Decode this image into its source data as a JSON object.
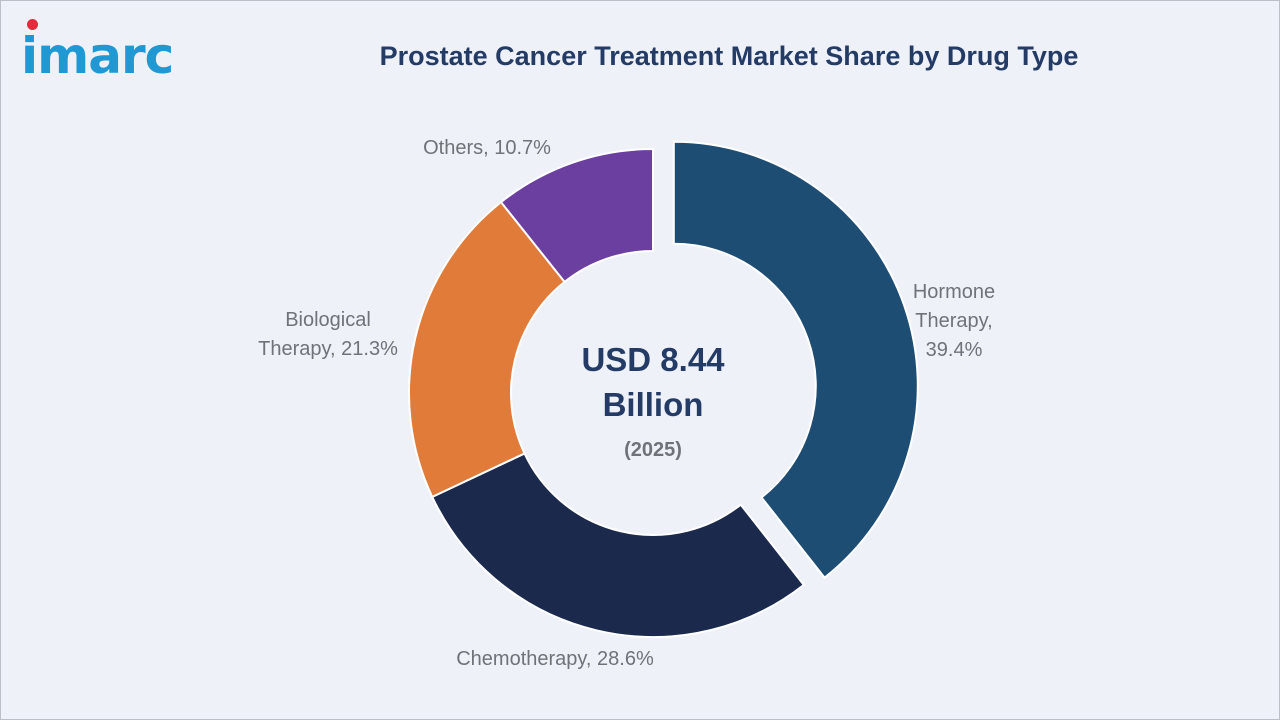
{
  "logo": {
    "text": "imarc"
  },
  "chart_data": {
    "type": "pie",
    "variant": "donut",
    "title": "Prostate Cancer Treatment Market Share by Drug Type",
    "center": {
      "value_line1": "USD 8.44",
      "value_line2": "Billion",
      "year": "(2025)"
    },
    "slices": [
      {
        "label": "Hormone Therapy",
        "value": 39.4,
        "color": "#1e4d74",
        "exploded": true,
        "label_lines": [
          "Hormone",
          "Therapy,",
          "39.4%"
        ]
      },
      {
        "label": "Chemotherapy",
        "value": 28.6,
        "color": "#1b2a4c",
        "exploded": false,
        "label_lines": [
          "Chemotherapy, 28.6%"
        ]
      },
      {
        "label": "Biological Therapy",
        "value": 21.3,
        "color": "#e07b39",
        "exploded": false,
        "label_lines": [
          "Biological",
          "Therapy, 21.3%"
        ]
      },
      {
        "label": "Others",
        "value": 10.7,
        "color": "#6b3fa0",
        "exploded": false,
        "label_lines": [
          "Others, 10.7%"
        ]
      }
    ]
  }
}
